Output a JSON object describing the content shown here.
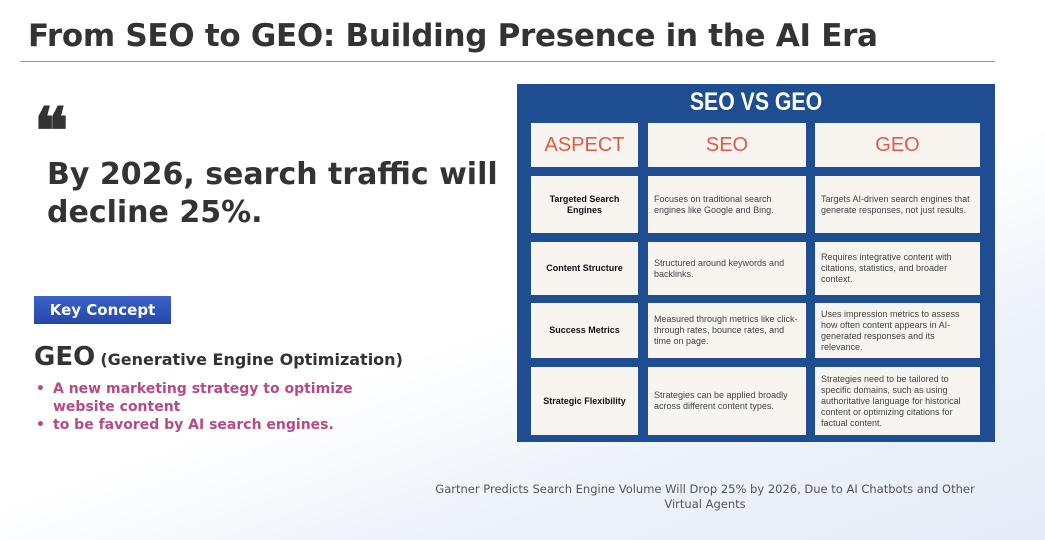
{
  "title": "From SEO to GEO: Building Presence in the AI Era",
  "quote_mark": "❝",
  "quote": "By 2026, search traffic will decline 25%.",
  "badge": "Key Concept",
  "geo": {
    "term": "GEO",
    "expansion": "(Generative Engine Optimization)"
  },
  "points": [
    "A new marketing strategy to optimize website content",
    "to be favored by AI search engines."
  ],
  "table": {
    "title": "SEO VS GEO",
    "headers": [
      "ASPECT",
      "SEO",
      "GEO"
    ],
    "rows": [
      [
        "Targeted Search Engines",
        "Focuses on traditional search engines like Google and Bing.",
        "Targets AI-driven search engines that generate responses, not just results."
      ],
      [
        "Content Structure",
        "Structured around keywords and backlinks.",
        "Requires integrative content with citations, statistics, and broader context."
      ],
      [
        "Success Metrics",
        "Measured through metrics like click-through rates, bounce rates, and time on page.",
        "Uses impression metrics to assess how often content appears in AI-generated responses and its relevance."
      ],
      [
        "Strategic Flexibility",
        "Strategies can be applied broadly across different content types.",
        "Strategies need to be tailored to specific domains, such as using authoritative language for historical content or optimizing citations for factual content."
      ]
    ]
  },
  "source": "Gartner Predicts Search Engine Volume Will Drop 25% by 2026, Due to AI Chatbots and Other Virtual Agents",
  "colors": {
    "accent": "#1e4e91",
    "pink": "#b54a86",
    "header_red": "#e05a47"
  }
}
